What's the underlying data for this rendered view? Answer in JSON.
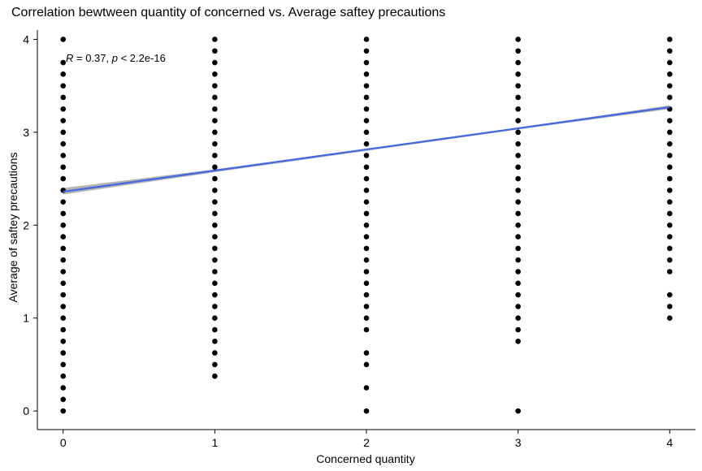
{
  "chart_data": {
    "type": "scatter",
    "title": "Correlation bewtween quantity of concerned vs. Average saftey precautions",
    "xlabel": "Concerned quantity",
    "ylabel": "Average of saftey precautions",
    "xlim": [
      -0.17,
      4.17
    ],
    "ylim": [
      -0.2,
      4.1
    ],
    "x_ticks": [
      "0",
      "1",
      "2",
      "3",
      "4"
    ],
    "y_ticks": [
      "0",
      "1",
      "2",
      "3",
      "4"
    ],
    "grid": false,
    "annotation": {
      "r_symbol": "R",
      "r_text": " = 0.37, ",
      "p_symbol": "p",
      "p_text": " < 2.2e-16"
    },
    "point_color": "#000000",
    "regression_color": "#4169e1",
    "confidence_band_color": "#999999",
    "regression_line": {
      "x": [
        0,
        4
      ],
      "y": [
        2.36,
        3.27
      ]
    },
    "confidence_band": {
      "x": [
        0,
        1,
        2,
        3,
        4
      ],
      "lower": [
        2.33,
        2.57,
        2.8,
        3.03,
        3.25
      ],
      "upper": [
        2.4,
        2.6,
        2.82,
        3.05,
        3.29
      ]
    },
    "points": [
      {
        "x": 0,
        "y": [
          0,
          0.125,
          0.25,
          0.375,
          0.5,
          0.625,
          0.75,
          0.875,
          1.0,
          1.125,
          1.25,
          1.375,
          1.5,
          1.625,
          1.75,
          1.875,
          2.0,
          2.125,
          2.25,
          2.375,
          2.5,
          2.625,
          2.75,
          2.875,
          3.0,
          3.125,
          3.25,
          3.375,
          3.5,
          3.625,
          3.75,
          4.0
        ]
      },
      {
        "x": 1,
        "y": [
          0.375,
          0.5,
          0.625,
          0.75,
          0.875,
          1.0,
          1.125,
          1.25,
          1.375,
          1.5,
          1.625,
          1.75,
          1.875,
          2.0,
          2.125,
          2.25,
          2.375,
          2.5,
          2.625,
          2.75,
          2.875,
          3.0,
          3.125,
          3.25,
          3.375,
          3.5,
          3.625,
          3.75,
          3.875,
          4.0
        ]
      },
      {
        "x": 2,
        "y": [
          0,
          0.25,
          0.5,
          0.625,
          0.875,
          1.0,
          1.125,
          1.25,
          1.375,
          1.5,
          1.625,
          1.75,
          1.875,
          2.0,
          2.125,
          2.25,
          2.375,
          2.5,
          2.625,
          2.75,
          2.875,
          3.0,
          3.125,
          3.25,
          3.375,
          3.5,
          3.625,
          3.75,
          3.875,
          4.0
        ]
      },
      {
        "x": 3,
        "y": [
          0,
          0.75,
          0.875,
          1.0,
          1.125,
          1.25,
          1.375,
          1.5,
          1.625,
          1.75,
          1.875,
          2.0,
          2.125,
          2.25,
          2.375,
          2.5,
          2.625,
          2.75,
          2.875,
          3.0,
          3.125,
          3.25,
          3.375,
          3.5,
          3.625,
          3.75,
          3.875,
          4.0
        ]
      },
      {
        "x": 4,
        "y": [
          1.0,
          1.125,
          1.25,
          1.5,
          1.625,
          1.75,
          1.875,
          2.0,
          2.125,
          2.25,
          2.375,
          2.5,
          2.625,
          2.75,
          2.875,
          3.0,
          3.125,
          3.25,
          3.375,
          3.5,
          3.625,
          3.75,
          3.875,
          4.0
        ]
      }
    ]
  }
}
